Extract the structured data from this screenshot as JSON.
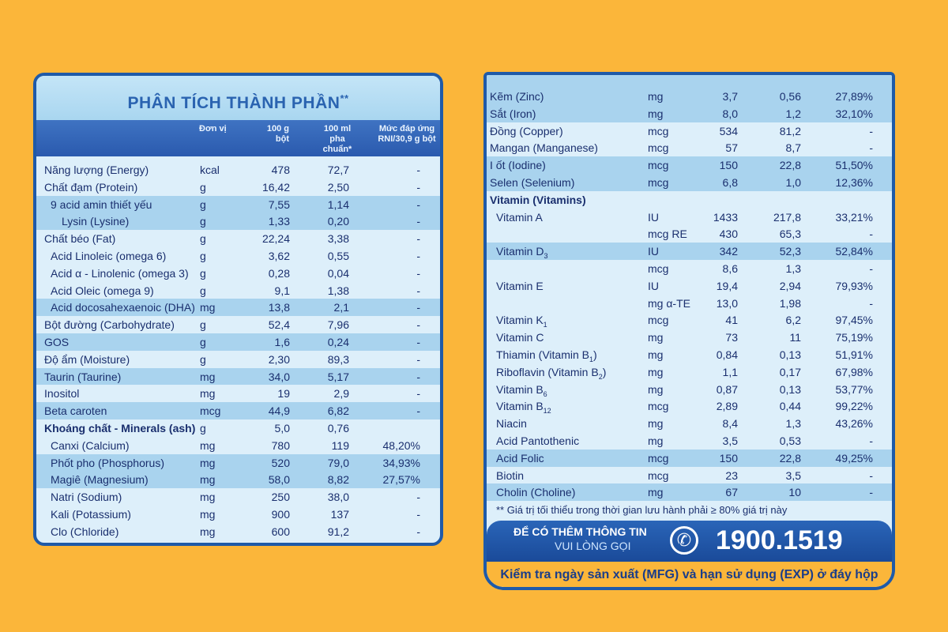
{
  "left": {
    "title": "PHÂN TÍCH THÀNH PHẦN",
    "title_sup": "**",
    "headers": {
      "unit": "Đơn vị",
      "col1a": "100 g",
      "col1b": "bột",
      "col2a": "100 ml",
      "col2b": "pha chuẩn*",
      "col3a": "Mức đáp ứng",
      "col3b": "RNI/30,9 g bột"
    },
    "rows": [
      {
        "name": "Năng lượng (Energy)",
        "unit": "kcal",
        "v1": "478",
        "v2": "72,7",
        "v3": "-"
      },
      {
        "name": "Chất đạm (Protein)",
        "unit": "g",
        "v1": "16,42",
        "v2": "2,50",
        "v3": "-"
      },
      {
        "name": "9 acid amin thiết yếu",
        "unit": "g",
        "v1": "7,55",
        "v2": "1,14",
        "v3": "-"
      },
      {
        "name": "Lysin (Lysine)",
        "unit": "g",
        "v1": "1,33",
        "v2": "0,20",
        "v3": "-"
      },
      {
        "name": "Chất béo (Fat)",
        "unit": "g",
        "v1": "22,24",
        "v2": "3,38",
        "v3": "-"
      },
      {
        "name": "Acid Linoleic (omega 6)",
        "unit": "g",
        "v1": "3,62",
        "v2": "0,55",
        "v3": "-"
      },
      {
        "name": "Acid α - Linolenic (omega 3)",
        "unit": "g",
        "v1": "0,28",
        "v2": "0,04",
        "v3": "-"
      },
      {
        "name": "Acid Oleic (omega 9)",
        "unit": "g",
        "v1": "9,1",
        "v2": "1,38",
        "v3": "-"
      },
      {
        "name": "Acid docosahexaenoic (DHA)",
        "unit": "mg",
        "v1": "13,8",
        "v2": "2,1",
        "v3": "-"
      },
      {
        "name": "Bột đường (Carbohydrate)",
        "unit": "g",
        "v1": "52,4",
        "v2": "7,96",
        "v3": "-"
      },
      {
        "name": "GOS",
        "unit": "g",
        "v1": "1,6",
        "v2": "0,24",
        "v3": "-"
      },
      {
        "name": "Độ ẩm (Moisture)",
        "unit": "g",
        "v1": "2,30",
        "v2": "89,3",
        "v3": "-"
      },
      {
        "name": "Taurin (Taurine)",
        "unit": "mg",
        "v1": "34,0",
        "v2": "5,17",
        "v3": "-"
      },
      {
        "name": "Inositol",
        "unit": "mg",
        "v1": "19",
        "v2": "2,9",
        "v3": "-"
      },
      {
        "name": "Beta caroten",
        "unit": "mcg",
        "v1": "44,9",
        "v2": "6,82",
        "v3": "-"
      },
      {
        "name": "Khoáng chất - Minerals (ash)",
        "unit": "g",
        "v1": "5,0",
        "v2": "0,76",
        "v3": ""
      },
      {
        "name": "Canxi (Calcium)",
        "unit": "mg",
        "v1": "780",
        "v2": "119",
        "v3": "48,20%"
      },
      {
        "name": "Phốt pho (Phosphorus)",
        "unit": "mg",
        "v1": "520",
        "v2": "79,0",
        "v3": "34,93%"
      },
      {
        "name": "Magiê (Magnesium)",
        "unit": "mg",
        "v1": "58,0",
        "v2": "8,82",
        "v3": "27,57%"
      },
      {
        "name": "Natri (Sodium)",
        "unit": "mg",
        "v1": "250",
        "v2": "38,0",
        "v3": "-"
      },
      {
        "name": "Kali (Potassium)",
        "unit": "mg",
        "v1": "900",
        "v2": "137",
        "v3": "-"
      },
      {
        "name": "Clo (Chloride)",
        "unit": "mg",
        "v1": "600",
        "v2": "91,2",
        "v3": "-"
      }
    ]
  },
  "right": {
    "rows": [
      {
        "name": "Kẽm (Zinc)",
        "unit": "mg",
        "v1": "3,7",
        "v2": "0,56",
        "v3": "27,89%"
      },
      {
        "name": "Sắt (Iron)",
        "unit": "mg",
        "v1": "8,0",
        "v2": "1,2",
        "v3": "32,10%"
      },
      {
        "name": "Đồng (Copper)",
        "unit": "mcg",
        "v1": "534",
        "v2": "81,2",
        "v3": "-"
      },
      {
        "name": "Mangan (Manganese)",
        "unit": "mcg",
        "v1": "57",
        "v2": "8,7",
        "v3": "-"
      },
      {
        "name": "I ốt (Iodine)",
        "unit": "mcg",
        "v1": "150",
        "v2": "22,8",
        "v3": "51,50%"
      },
      {
        "name": "Selen (Selenium)",
        "unit": "mcg",
        "v1": "6,8",
        "v2": "1,0",
        "v3": "12,36%"
      },
      {
        "name": "Vitamin (Vitamins)",
        "unit": "",
        "v1": "",
        "v2": "",
        "v3": ""
      },
      {
        "name": "Vitamin A",
        "unit": "IU",
        "v1": "1433",
        "v2": "217,8",
        "v3": "33,21%"
      },
      {
        "name": "",
        "unit": "mcg RE",
        "v1": "430",
        "v2": "65,3",
        "v3": "-"
      },
      {
        "name": "Vitamin D",
        "name_sub": "3",
        "unit": "IU",
        "v1": "342",
        "v2": "52,3",
        "v3": "52,84%"
      },
      {
        "name": "",
        "unit": "mcg",
        "v1": "8,6",
        "v2": "1,3",
        "v3": "-"
      },
      {
        "name": "Vitamin E",
        "unit": "IU",
        "v1": "19,4",
        "v2": "2,94",
        "v3": "79,93%"
      },
      {
        "name": "",
        "unit": "mg α-TE",
        "v1": "13,0",
        "v2": "1,98",
        "v3": "-"
      },
      {
        "name": "Vitamin K",
        "name_sub": "1",
        "unit": "mcg",
        "v1": "41",
        "v2": "6,2",
        "v3": "97,45%"
      },
      {
        "name": "Vitamin C",
        "unit": "mg",
        "v1": "73",
        "v2": "11",
        "v3": "75,19%"
      },
      {
        "name": "Thiamin (Vitamin B",
        "name_sub": "1",
        "name_after": ")",
        "unit": "mg",
        "v1": "0,84",
        "v2": "0,13",
        "v3": "51,91%"
      },
      {
        "name": "Riboflavin (Vitamin B",
        "name_sub": "2",
        "name_after": ")",
        "unit": "mg",
        "v1": "1,1",
        "v2": "0,17",
        "v3": "67,98%"
      },
      {
        "name": "Vitamin B",
        "name_sub": "6",
        "unit": "mg",
        "v1": "0,87",
        "v2": "0,13",
        "v3": "53,77%"
      },
      {
        "name": "Vitamin B",
        "name_sub": "12",
        "unit": "mcg",
        "v1": "2,89",
        "v2": "0,44",
        "v3": "99,22%"
      },
      {
        "name": "Niacin",
        "unit": "mg",
        "v1": "8,4",
        "v2": "1,3",
        "v3": "43,26%"
      },
      {
        "name": "Acid Pantothenic",
        "unit": "mg",
        "v1": "3,5",
        "v2": "0,53",
        "v3": "-"
      },
      {
        "name": "Acid Folic",
        "unit": "mcg",
        "v1": "150",
        "v2": "22,8",
        "v3": "49,25%"
      },
      {
        "name": "Biotin",
        "unit": "mcg",
        "v1": "23",
        "v2": "3,5",
        "v3": "-"
      },
      {
        "name": "Cholin (Choline)",
        "unit": "mg",
        "v1": "67",
        "v2": "10",
        "v3": "-"
      }
    ],
    "note": "** Giá trị tối thiểu trong thời gian lưu hành phải ≥ 80% giá trị này",
    "contact_line1": "ĐỂ CÓ THÊM THÔNG TIN",
    "contact_line2": "VUI LÒNG GỌI",
    "phone_icon": "phone-icon",
    "phone_number": "1900.1519",
    "footer": "Kiểm tra ngày sản xuất (MFG) và hạn sử dụng (EXP) ở đáy hộp"
  }
}
